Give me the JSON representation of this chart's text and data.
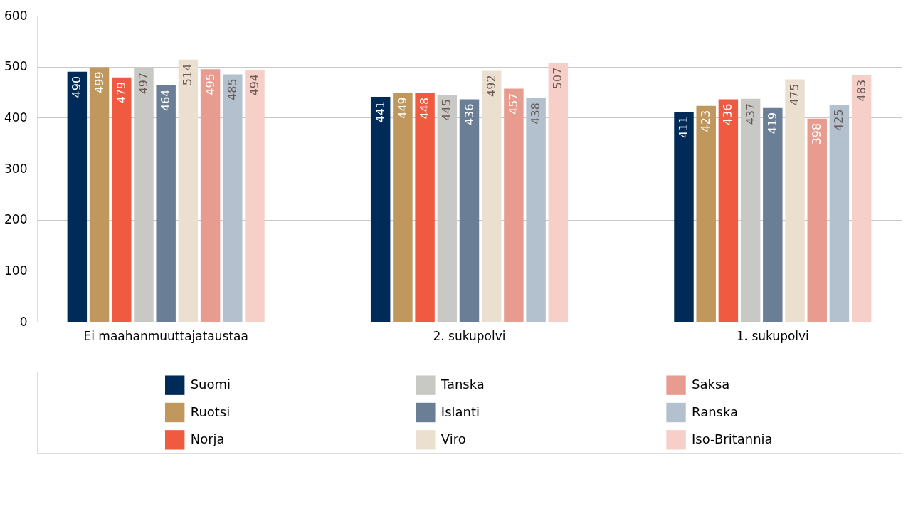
{
  "chart_data": {
    "type": "bar",
    "categories": [
      "Ei maahanmuuttajataustaa",
      "2. sukupolvi",
      "1. sukupolvi"
    ],
    "series": [
      {
        "name": "Suomi",
        "color": "#002a57",
        "values": [
          490,
          441,
          411
        ]
      },
      {
        "name": "Ruotsi",
        "color": "#c0985e",
        "values": [
          499,
          449,
          423
        ]
      },
      {
        "name": "Norja",
        "color": "#f05a40",
        "values": [
          479,
          448,
          436
        ]
      },
      {
        "name": "Tanska",
        "color": "#c8c8c5",
        "values": [
          497,
          445,
          437
        ]
      },
      {
        "name": "Islanti",
        "color": "#6a7f96",
        "values": [
          464,
          436,
          419
        ]
      },
      {
        "name": "Viro",
        "color": "#ebe0d0",
        "values": [
          514,
          492,
          475
        ]
      },
      {
        "name": "Saksa",
        "color": "#e89c90",
        "values": [
          495,
          457,
          398
        ]
      },
      {
        "name": "Ranska",
        "color": "#b3c0ce",
        "values": [
          485,
          438,
          425
        ]
      },
      {
        "name": "Iso-Britannia",
        "color": "#f5cfc8",
        "values": [
          494,
          507,
          483
        ]
      }
    ],
    "ylim": [
      0,
      600
    ],
    "yticks": [
      0,
      100,
      200,
      300,
      400,
      500,
      600
    ],
    "grid": "y",
    "data_labels": true,
    "legend": "bottom"
  }
}
